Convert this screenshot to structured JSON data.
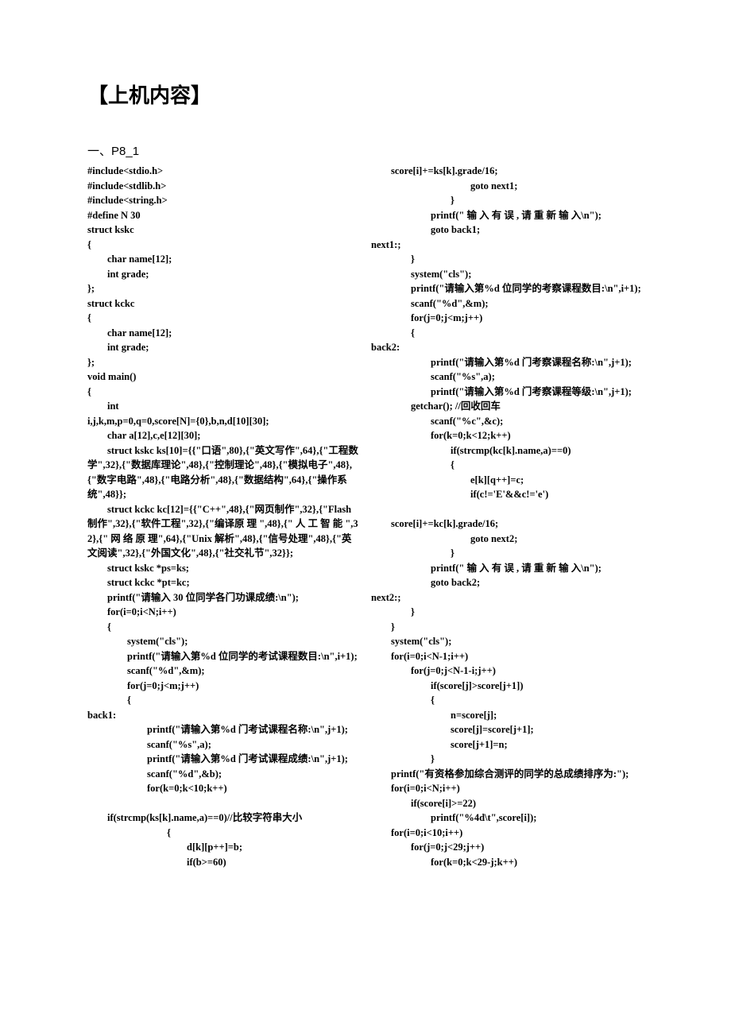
{
  "heading": "【上机内容】",
  "subheading_label": "一、",
  "subheading_code": "P8_1",
  "col1": "#include<stdio.h>\n#include<stdlib.h>\n#include<string.h>\n#define N 30\nstruct kskc\n{\n        char name[12];\n        int grade;\n};\nstruct kckc\n{\n        char name[12];\n        int grade;\n};\nvoid main()\n{\n        int\ni,j,k,m,p=0,q=0,score[N]={0},b,n,d[10][30];\n        char a[12],c,e[12][30];\n        struct kskc ks[10]={{\"口语\",80},{\"英文写作\",64},{\"工程数学\",32},{\"数据库理论\",48},{\"控制理论\",48},{\"模拟电子\",48},{\"数字电路\",48},{\"电路分析\",48},{\"数据结构\",64},{\"操作系统\",48}};\n        struct kckc kc[12]={{\"C++\",48},{\"网页制作\",32},{\"Flash 制作\",32},{\"软件工程\",32},{\"编译原 理 \",48},{\" 人 工 智 能 \",32},{\" 网 络 原 理\",64},{\"Unix 解析\",48},{\"信号处理\",48},{\"英文阅读\",32},{\"外国文化\",48},{\"社交礼节\",32}};\n        struct kskc *ps=ks;\n        struct kckc *pt=kc;\n        printf(\"请输入 30 位同学各门功课成绩:\\n\");\n        for(i=0;i<N;i++)\n        {\n                system(\"cls\");\n                printf(\"请输入第%d 位同学的考试课程数目:\\n\",i+1);\n                scanf(\"%d\",&m);\n                for(j=0;j<m;j++)\n                {\nback1:\n                        printf(\"请输入第%d 门考试课程名称:\\n\",j+1);\n                        scanf(\"%s\",a);\n                        printf(\"请输入第%d 门考试课程成绩:\\n\",j+1);\n                        scanf(\"%d\",&b);\n                        for(k=0;k<10;k++)\n\n        if(strcmp(ks[k].name,a)==0)//比较字符串大小\n                                {\n                                        d[k][p++]=b;\n                                        if(b>=60)",
  "col2": "        score[i]+=ks[k].grade/16;\n                                        goto next1;\n                                }\n                        printf(\" 输 入 有 误 , 请 重 新 输 入\\n\");\n                        goto back1;\nnext1:;\n                }\n                system(\"cls\");\n                printf(\"请输入第%d 位同学的考察课程数目:\\n\",i+1);\n                scanf(\"%d\",&m);\n                for(j=0;j<m;j++)\n                {\nback2:\n                        printf(\"请输入第%d 门考察课程名称:\\n\",j+1);\n                        scanf(\"%s\",a);\n                        printf(\"请输入第%d 门考察课程等级:\\n\",j+1);\n                getchar(); //回收回车\n                        scanf(\"%c\",&c);\n                        for(k=0;k<12;k++)\n                                if(strcmp(kc[k].name,a)==0)\n                                {\n                                        e[k][q++]=c;\n                                        if(c!='E'&&c!='e')\n\n        score[i]+=kc[k].grade/16;\n                                        goto next2;\n                                }\n                        printf(\" 输 入 有 误 , 请 重 新 输 入\\n\");\n                        goto back2;\nnext2:;\n                }\n        }\n        system(\"cls\");\n        for(i=0;i<N-1;i++)\n                for(j=0;j<N-1-i;j++)\n                        if(score[j]>score[j+1])\n                        {\n                                n=score[j];\n                                score[j]=score[j+1];\n                                score[j+1]=n;\n                        }\n        printf(\"有资格参加综合测评的同学的总成绩排序为:\");\n        for(i=0;i<N;i++)\n                if(score[i]>=22)\n                        printf(\"%4d\\t\",score[i]);\n        for(i=0;i<10;i++)\n                for(j=0;j<29;j++)\n                        for(k=0;k<29-j;k++)"
}
